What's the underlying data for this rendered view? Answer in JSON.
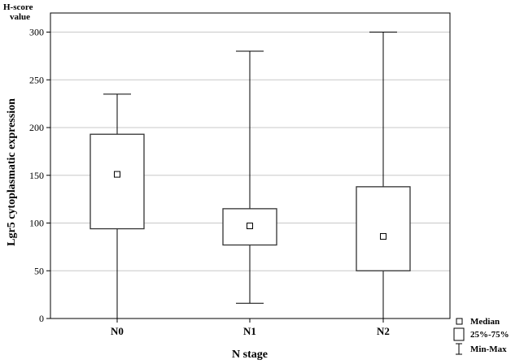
{
  "chart_data": {
    "type": "box",
    "corner_title": [
      "H-score",
      "value"
    ],
    "xlabel": "N stage",
    "ylabel": "Lgr5 cytoplasmatic expression",
    "ylim": [
      0,
      320
    ],
    "yticks": [
      0,
      50,
      100,
      150,
      200,
      250,
      300
    ],
    "grid": "horizontal",
    "categories": [
      "N0",
      "N1",
      "N2"
    ],
    "boxes": [
      {
        "category": "N0",
        "min": 0,
        "q1": 94,
        "median": 151,
        "q3": 193,
        "max": 235
      },
      {
        "category": "N1",
        "min": 16,
        "q1": 77,
        "median": 97,
        "q3": 115,
        "max": 280
      },
      {
        "category": "N2",
        "min": 0,
        "q1": 50,
        "median": 86,
        "q3": 138,
        "max": 300
      }
    ],
    "legend": {
      "position": "bottom-right",
      "items": [
        {
          "symbol": "median-square",
          "label": "Median"
        },
        {
          "symbol": "box",
          "label": "25%-75%"
        },
        {
          "symbol": "whisker",
          "label": "Min-Max"
        }
      ]
    },
    "colors": {
      "line": "#000000",
      "grid": "#c8c8c8",
      "box_stroke": "#333333"
    }
  }
}
